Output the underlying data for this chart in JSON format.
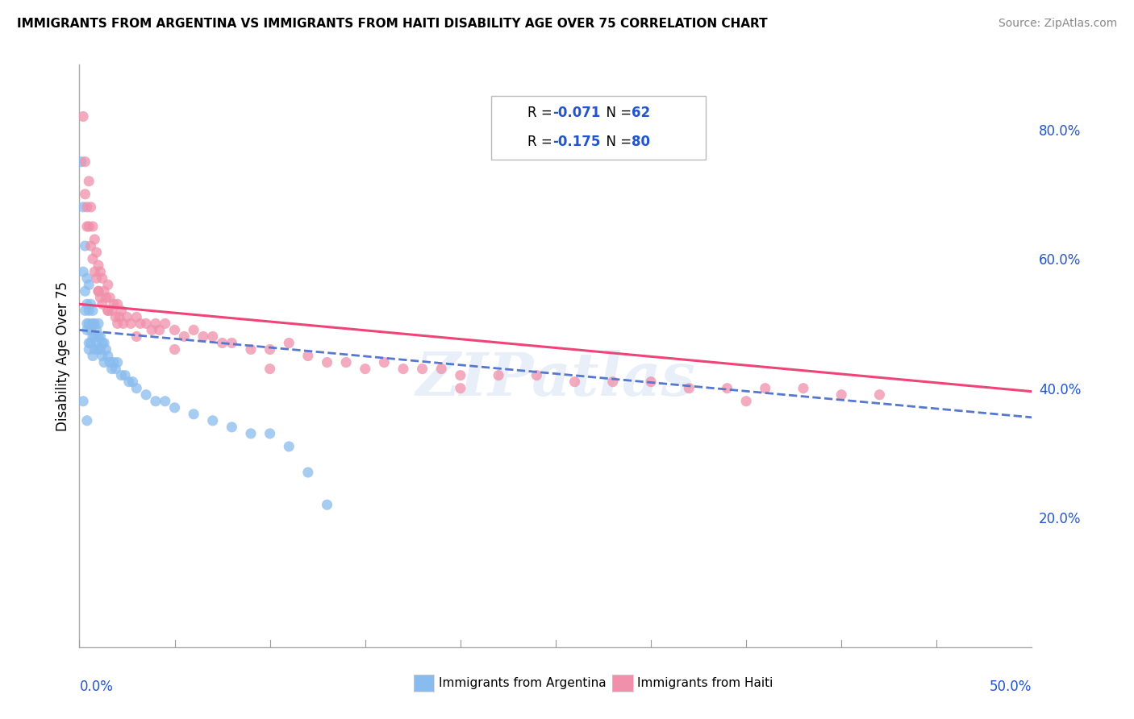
{
  "title": "IMMIGRANTS FROM ARGENTINA VS IMMIGRANTS FROM HAITI DISABILITY AGE OVER 75 CORRELATION CHART",
  "source": "Source: ZipAtlas.com",
  "xlabel_bottom_left": "0.0%",
  "xlabel_bottom_right": "50.0%",
  "ylabel": "Disability Age Over 75",
  "ylabel_right_ticks": [
    "20.0%",
    "40.0%",
    "60.0%",
    "80.0%"
  ],
  "ylabel_right_vals": [
    0.2,
    0.4,
    0.6,
    0.8
  ],
  "xlim": [
    0.0,
    0.5
  ],
  "ylim": [
    0.0,
    0.9
  ],
  "legend_r_color": "#2255cc",
  "scatter_argentina_color": "#88bbee",
  "scatter_haiti_color": "#f090aa",
  "trendline_argentina_color": "#5577cc",
  "trendline_haiti_color": "#ee4477",
  "watermark": "ZIPatlas",
  "argentina_x": [
    0.001,
    0.002,
    0.002,
    0.003,
    0.003,
    0.003,
    0.004,
    0.004,
    0.004,
    0.004,
    0.005,
    0.005,
    0.005,
    0.005,
    0.005,
    0.006,
    0.006,
    0.006,
    0.007,
    0.007,
    0.007,
    0.007,
    0.008,
    0.008,
    0.008,
    0.009,
    0.009,
    0.01,
    0.01,
    0.01,
    0.011,
    0.011,
    0.012,
    0.012,
    0.013,
    0.013,
    0.014,
    0.015,
    0.016,
    0.017,
    0.018,
    0.019,
    0.02,
    0.022,
    0.024,
    0.026,
    0.028,
    0.03,
    0.035,
    0.04,
    0.045,
    0.05,
    0.06,
    0.07,
    0.08,
    0.09,
    0.1,
    0.11,
    0.12,
    0.13,
    0.002,
    0.004
  ],
  "argentina_y": [
    0.75,
    0.68,
    0.58,
    0.62,
    0.55,
    0.52,
    0.57,
    0.53,
    0.5,
    0.49,
    0.56,
    0.52,
    0.5,
    0.47,
    0.46,
    0.53,
    0.49,
    0.47,
    0.52,
    0.5,
    0.48,
    0.45,
    0.5,
    0.48,
    0.46,
    0.49,
    0.47,
    0.5,
    0.48,
    0.46,
    0.48,
    0.46,
    0.47,
    0.45,
    0.47,
    0.44,
    0.46,
    0.45,
    0.44,
    0.43,
    0.44,
    0.43,
    0.44,
    0.42,
    0.42,
    0.41,
    0.41,
    0.4,
    0.39,
    0.38,
    0.38,
    0.37,
    0.36,
    0.35,
    0.34,
    0.33,
    0.33,
    0.31,
    0.27,
    0.22,
    0.38,
    0.35
  ],
  "haiti_x": [
    0.002,
    0.003,
    0.004,
    0.005,
    0.005,
    0.006,
    0.006,
    0.007,
    0.007,
    0.008,
    0.008,
    0.009,
    0.009,
    0.01,
    0.01,
    0.011,
    0.011,
    0.012,
    0.012,
    0.013,
    0.014,
    0.015,
    0.015,
    0.016,
    0.017,
    0.018,
    0.019,
    0.02,
    0.021,
    0.022,
    0.023,
    0.025,
    0.027,
    0.03,
    0.032,
    0.035,
    0.038,
    0.04,
    0.042,
    0.045,
    0.05,
    0.055,
    0.06,
    0.065,
    0.07,
    0.075,
    0.08,
    0.09,
    0.1,
    0.11,
    0.12,
    0.13,
    0.14,
    0.15,
    0.16,
    0.17,
    0.18,
    0.19,
    0.2,
    0.22,
    0.24,
    0.26,
    0.28,
    0.3,
    0.32,
    0.34,
    0.36,
    0.38,
    0.4,
    0.42,
    0.003,
    0.004,
    0.01,
    0.015,
    0.02,
    0.03,
    0.05,
    0.1,
    0.2,
    0.35
  ],
  "haiti_y": [
    0.82,
    0.75,
    0.68,
    0.72,
    0.65,
    0.68,
    0.62,
    0.65,
    0.6,
    0.63,
    0.58,
    0.61,
    0.57,
    0.59,
    0.55,
    0.58,
    0.54,
    0.57,
    0.53,
    0.55,
    0.54,
    0.56,
    0.52,
    0.54,
    0.52,
    0.53,
    0.51,
    0.53,
    0.51,
    0.52,
    0.5,
    0.51,
    0.5,
    0.51,
    0.5,
    0.5,
    0.49,
    0.5,
    0.49,
    0.5,
    0.49,
    0.48,
    0.49,
    0.48,
    0.48,
    0.47,
    0.47,
    0.46,
    0.46,
    0.47,
    0.45,
    0.44,
    0.44,
    0.43,
    0.44,
    0.43,
    0.43,
    0.43,
    0.42,
    0.42,
    0.42,
    0.41,
    0.41,
    0.41,
    0.4,
    0.4,
    0.4,
    0.4,
    0.39,
    0.39,
    0.7,
    0.65,
    0.55,
    0.52,
    0.5,
    0.48,
    0.46,
    0.43,
    0.4,
    0.38
  ],
  "trendline_arg_x0": 0.0,
  "trendline_arg_y0": 0.49,
  "trendline_arg_x1": 0.5,
  "trendline_arg_y1": 0.355,
  "trendline_hai_x0": 0.0,
  "trendline_hai_y0": 0.53,
  "trendline_hai_x1": 0.5,
  "trendline_hai_y1": 0.395
}
